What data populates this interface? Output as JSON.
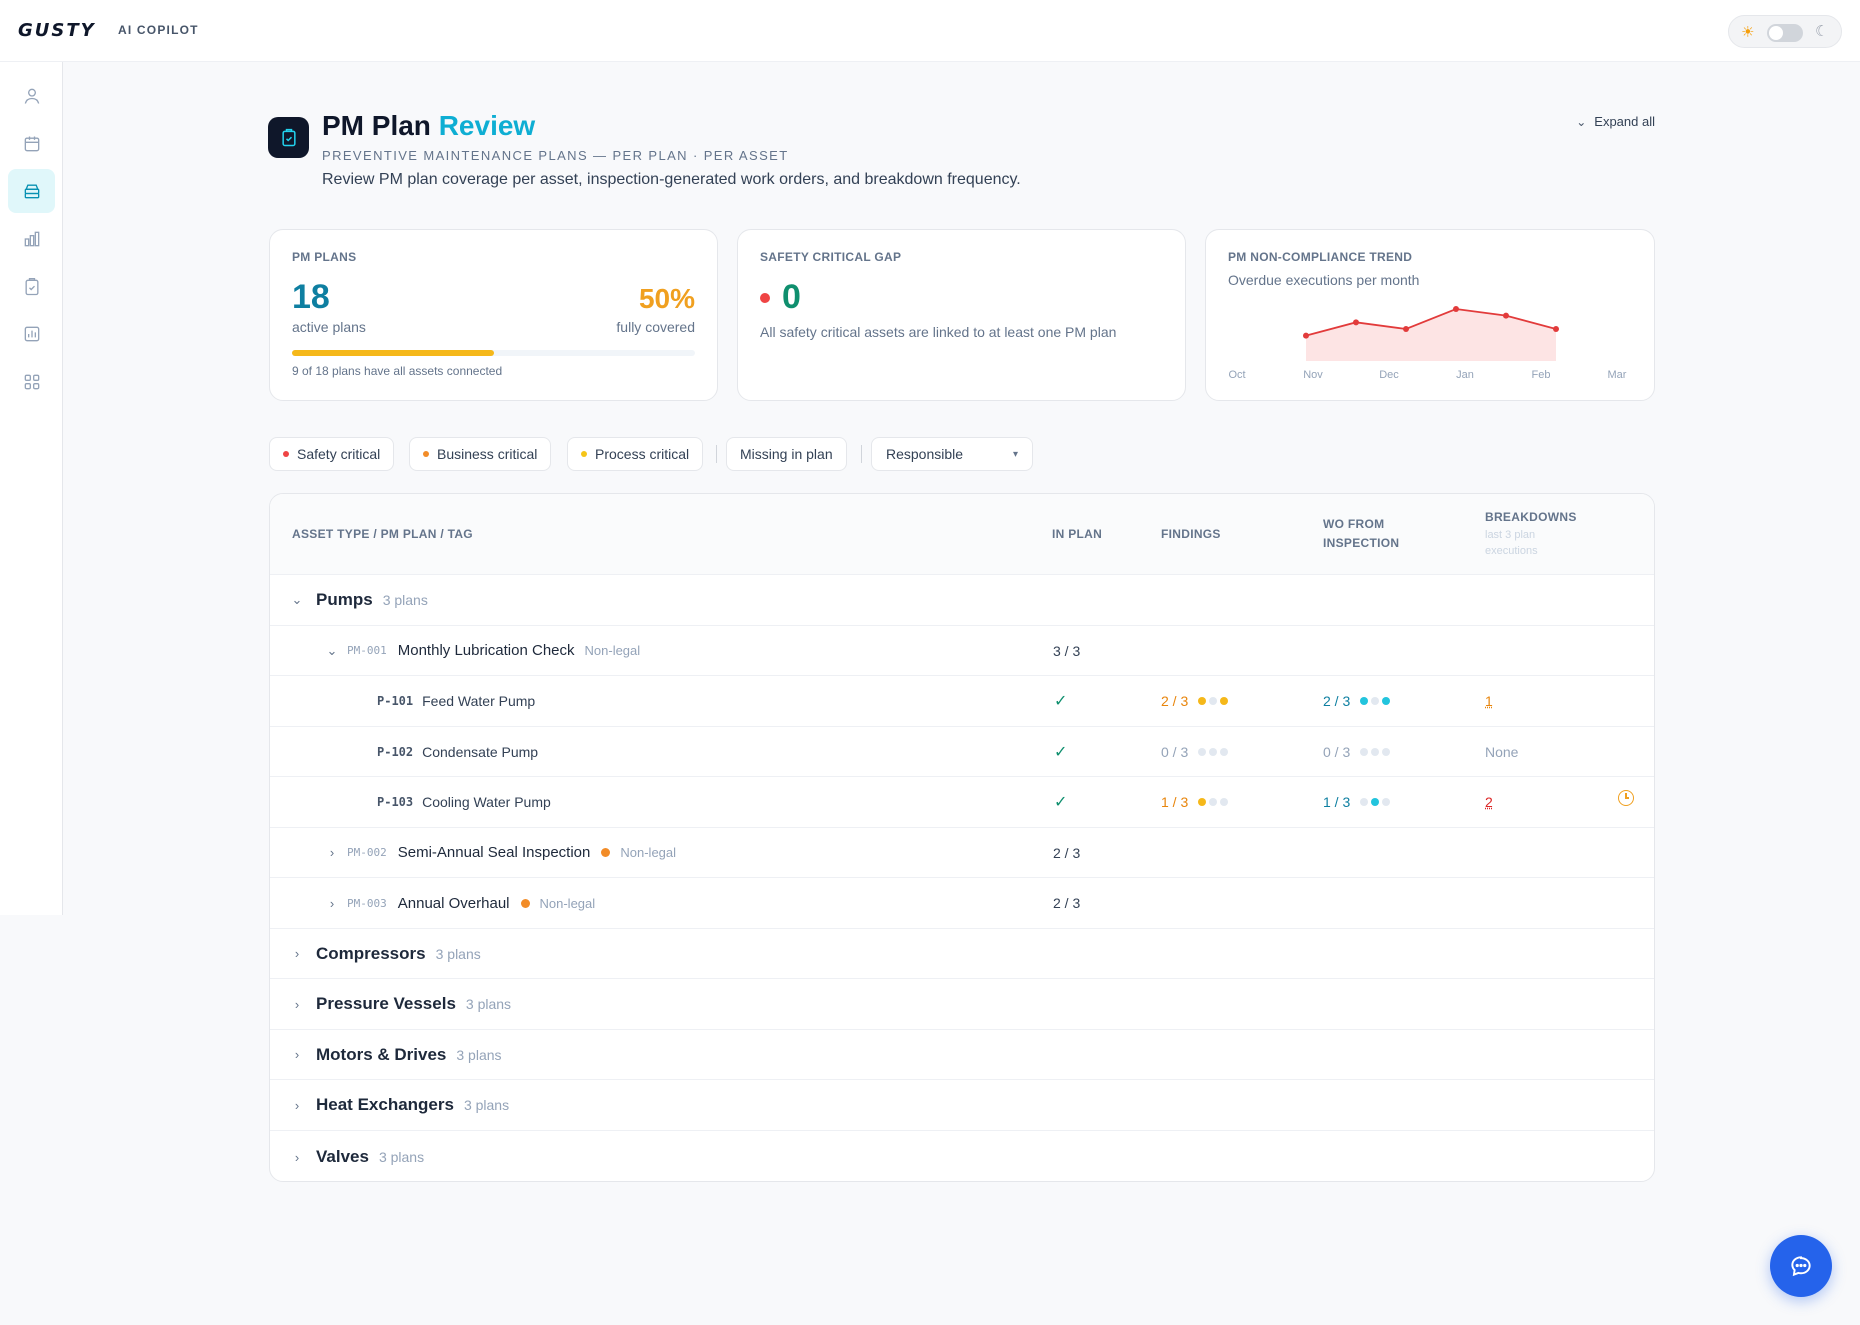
{
  "app": {
    "logo": "GUSTY",
    "subtitle": "AI COPILOT"
  },
  "header": {
    "title_main": "PM Plan",
    "title_accent": "Review",
    "subtitle": "PREVENTIVE MAINTENANCE PLANS — PER PLAN · PER ASSET",
    "description": "Review PM plan coverage per asset, inspection-generated work orders, and breakdown frequency.",
    "expand_all": "Expand all"
  },
  "cards": {
    "pm_plans": {
      "label": "PM PLANS",
      "count": "18",
      "count_caption": "active plans",
      "percent": "50%",
      "percent_caption": "fully covered",
      "progress_fraction": 0.5,
      "note": "9 of 18 plans have all assets connected"
    },
    "safety_gap": {
      "label": "SAFETY CRITICAL GAP",
      "value": "0",
      "note": "All safety critical assets are linked to at least one PM plan"
    },
    "trend": {
      "label": "PM NON-COMPLIANCE TREND",
      "subtitle": "Overdue executions per month",
      "months": [
        "Oct",
        "Nov",
        "Dec",
        "Jan",
        "Feb",
        "Mar"
      ],
      "values": [
        2,
        4,
        3,
        6,
        5,
        3
      ],
      "line_color": "#e23b3b",
      "fill_color": "#fde4e4"
    }
  },
  "filters": {
    "chips": [
      {
        "label": "Safety critical",
        "color": "#ef4444"
      },
      {
        "label": "Business critical",
        "color": "#f28c28"
      },
      {
        "label": "Process critical",
        "color": "#f5c518"
      }
    ],
    "missing": "Missing in plan",
    "responsible": "Responsible"
  },
  "table": {
    "headers": {
      "asset": "ASSET TYPE / PM PLAN / TAG",
      "in_plan": "IN PLAN",
      "findings": "FINDINGS",
      "wo_line1": "WO FROM",
      "wo_line2": "INSPECTION",
      "breakdowns": "BREAKDOWNS",
      "breakdowns_sub1": "last 3 plan",
      "breakdowns_sub2": "executions"
    },
    "pumps": {
      "name": "Pumps",
      "count": "3 plans"
    },
    "plans": [
      {
        "id": "PM-001",
        "name": "Monthly Lubrication Check",
        "type": "Non-legal",
        "in_plan": "3 / 3"
      },
      {
        "id": "PM-002",
        "name": "Semi-Annual Seal Inspection",
        "type": "Non-legal",
        "in_plan": "2 / 3"
      },
      {
        "id": "PM-003",
        "name": "Annual Overhaul",
        "type": "Non-legal",
        "in_plan": "2 / 3"
      }
    ],
    "assets": [
      {
        "tag": "P-101",
        "name": "Feed Water Pump",
        "findings": "2 / 3",
        "wo": "2 / 3",
        "breakdowns": "1"
      },
      {
        "tag": "P-102",
        "name": "Condensate Pump",
        "findings": "0 / 3",
        "wo": "0 / 3",
        "breakdowns": "None"
      },
      {
        "tag": "P-103",
        "name": "Cooling Water Pump",
        "findings": "1 / 3",
        "wo": "1 / 3",
        "breakdowns": "2"
      }
    ],
    "groups": [
      {
        "name": "Compressors",
        "count": "3 plans"
      },
      {
        "name": "Pressure Vessels",
        "count": "3 plans"
      },
      {
        "name": "Motors & Drives",
        "count": "3 plans"
      },
      {
        "name": "Heat Exchangers",
        "count": "3 plans"
      },
      {
        "name": "Valves",
        "count": "3 plans"
      }
    ]
  }
}
